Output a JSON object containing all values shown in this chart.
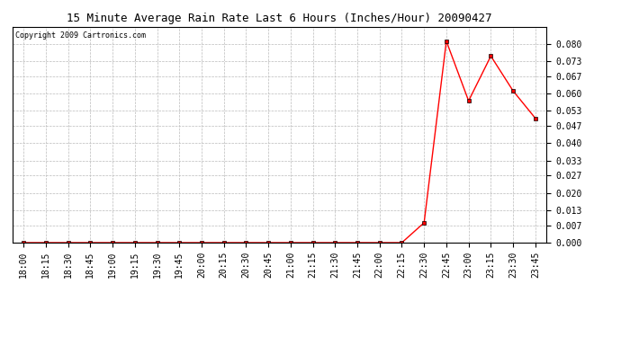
{
  "title": "15 Minute Average Rain Rate Last 6 Hours (Inches/Hour) 20090427",
  "copyright": "Copyright 2009 Cartronics.com",
  "x_labels": [
    "18:00",
    "18:15",
    "18:30",
    "18:45",
    "19:00",
    "19:15",
    "19:30",
    "19:45",
    "20:00",
    "20:15",
    "20:30",
    "20:45",
    "21:00",
    "21:15",
    "21:30",
    "21:45",
    "22:00",
    "22:15",
    "22:30",
    "22:45",
    "23:00",
    "23:15",
    "23:30",
    "23:45"
  ],
  "y_values": [
    0.0,
    0.0,
    0.0,
    0.0,
    0.0,
    0.0,
    0.0,
    0.0,
    0.0,
    0.0,
    0.0,
    0.0,
    0.0,
    0.0,
    0.0,
    0.0,
    0.0,
    0.0,
    0.008,
    0.081,
    0.057,
    0.075,
    0.061,
    0.05
  ],
  "ylim": [
    0.0,
    0.0867
  ],
  "yticks": [
    0.0,
    0.007,
    0.013,
    0.02,
    0.027,
    0.033,
    0.04,
    0.047,
    0.053,
    0.06,
    0.067,
    0.073,
    0.08
  ],
  "line_color": "#FF0000",
  "marker": "s",
  "marker_size": 2.5,
  "bg_color": "#FFFFFF",
  "grid_color": "#BBBBBB",
  "title_fontsize": 9,
  "tick_fontsize": 7,
  "copyright_fontsize": 6
}
